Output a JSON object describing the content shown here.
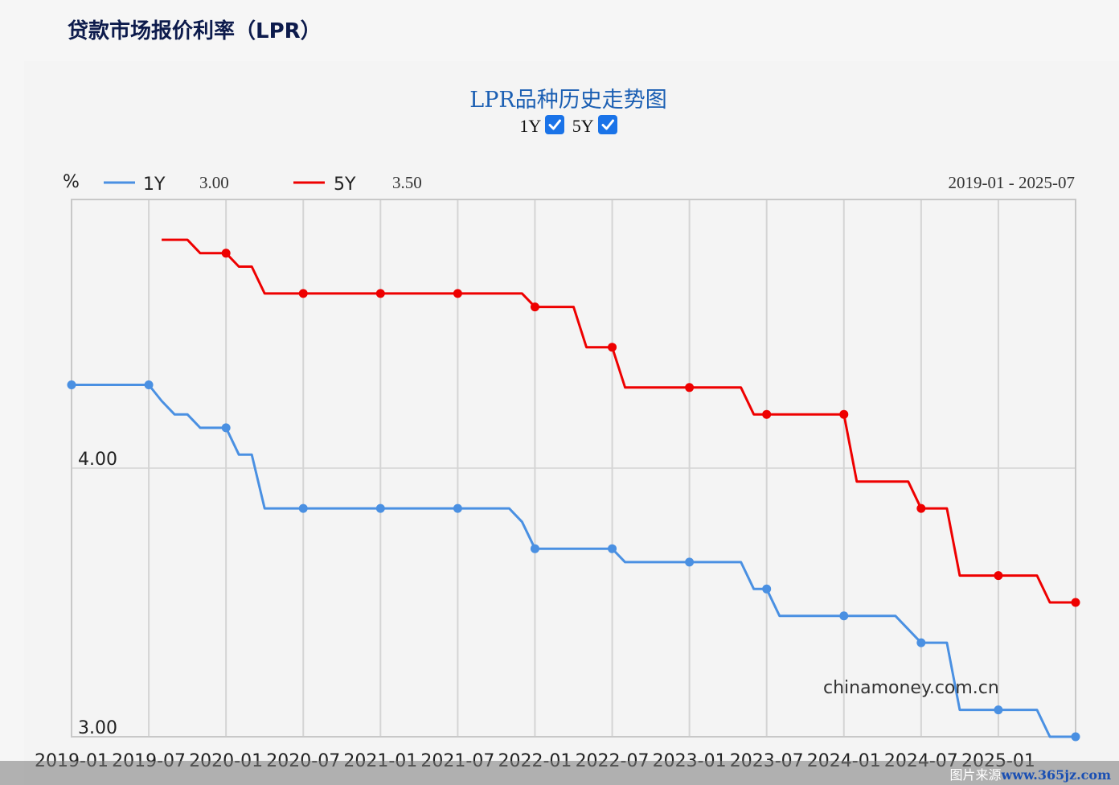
{
  "page_title": "贷款市场报价利率（LPR）",
  "chart_title": "LPR品种历史走势图",
  "toggles": [
    {
      "label": "1Y",
      "checked": true
    },
    {
      "label": "5Y",
      "checked": true
    }
  ],
  "legend": {
    "unit": "%",
    "series": [
      {
        "name": "1Y",
        "value": "3.00",
        "color": "#4a90e2"
      },
      {
        "name": "5Y",
        "value": "3.50",
        "color": "#ee0000"
      }
    ]
  },
  "date_range": "2019-01 - 2025-07",
  "watermark": "chinamoney.com.cn",
  "footer": {
    "prefix": "图片来源",
    "site": "www.365jz.com"
  },
  "chart_data": {
    "type": "line",
    "xlabel": "",
    "ylabel": "%",
    "xlim": [
      "2019-01",
      "2025-07"
    ],
    "ylim": [
      3.0,
      5.0
    ],
    "x_ticks": [
      "2019-01",
      "2019-07",
      "2020-01",
      "2020-07",
      "2021-01",
      "2021-07",
      "2022-01",
      "2022-07",
      "2023-01",
      "2023-07",
      "2024-01",
      "2024-07",
      "2025-01"
    ],
    "y_ticks": [
      "4.00",
      "3.00"
    ],
    "y_tick_values": [
      4.0,
      3.0
    ],
    "grid": true,
    "series": [
      {
        "name": "1Y",
        "color": "#4a90e2",
        "points": [
          [
            "2019-01",
            4.31
          ],
          [
            "2019-07",
            4.31
          ],
          [
            "2019-08",
            4.25
          ],
          [
            "2019-09",
            4.2
          ],
          [
            "2019-10",
            4.2
          ],
          [
            "2019-11",
            4.15
          ],
          [
            "2020-01",
            4.15
          ],
          [
            "2020-02",
            4.05
          ],
          [
            "2020-03",
            4.05
          ],
          [
            "2020-04",
            3.85
          ],
          [
            "2020-07",
            3.85
          ],
          [
            "2021-01",
            3.85
          ],
          [
            "2021-07",
            3.85
          ],
          [
            "2021-11",
            3.85
          ],
          [
            "2021-12",
            3.8
          ],
          [
            "2022-01",
            3.7
          ],
          [
            "2022-07",
            3.7
          ],
          [
            "2022-08",
            3.65
          ],
          [
            "2023-01",
            3.65
          ],
          [
            "2023-05",
            3.65
          ],
          [
            "2023-06",
            3.55
          ],
          [
            "2023-07",
            3.55
          ],
          [
            "2023-08",
            3.45
          ],
          [
            "2024-01",
            3.45
          ],
          [
            "2024-05",
            3.45
          ],
          [
            "2024-07",
            3.35
          ],
          [
            "2024-09",
            3.35
          ],
          [
            "2024-10",
            3.1
          ],
          [
            "2025-01",
            3.1
          ],
          [
            "2025-04",
            3.1
          ],
          [
            "2025-05",
            3.0
          ],
          [
            "2025-07",
            3.0
          ]
        ],
        "markers": [
          [
            "2019-01",
            4.31
          ],
          [
            "2019-07",
            4.31
          ],
          [
            "2020-01",
            4.15
          ],
          [
            "2020-07",
            3.85
          ],
          [
            "2021-01",
            3.85
          ],
          [
            "2021-07",
            3.85
          ],
          [
            "2022-01",
            3.7
          ],
          [
            "2022-07",
            3.7
          ],
          [
            "2023-01",
            3.65
          ],
          [
            "2023-07",
            3.55
          ],
          [
            "2024-01",
            3.45
          ],
          [
            "2024-07",
            3.35
          ],
          [
            "2025-01",
            3.1
          ],
          [
            "2025-07",
            3.0
          ]
        ]
      },
      {
        "name": "5Y",
        "color": "#ee0000",
        "points": [
          [
            "2019-08",
            4.85
          ],
          [
            "2019-10",
            4.85
          ],
          [
            "2019-11",
            4.8
          ],
          [
            "2020-01",
            4.8
          ],
          [
            "2020-02",
            4.75
          ],
          [
            "2020-03",
            4.75
          ],
          [
            "2020-04",
            4.65
          ],
          [
            "2020-07",
            4.65
          ],
          [
            "2021-01",
            4.65
          ],
          [
            "2021-07",
            4.65
          ],
          [
            "2021-12",
            4.65
          ],
          [
            "2022-01",
            4.6
          ],
          [
            "2022-04",
            4.6
          ],
          [
            "2022-05",
            4.45
          ],
          [
            "2022-07",
            4.45
          ],
          [
            "2022-08",
            4.3
          ],
          [
            "2023-01",
            4.3
          ],
          [
            "2023-05",
            4.3
          ],
          [
            "2023-06",
            4.2
          ],
          [
            "2023-07",
            4.2
          ],
          [
            "2024-01",
            4.2
          ],
          [
            "2024-02",
            3.95
          ],
          [
            "2024-06",
            3.95
          ],
          [
            "2024-07",
            3.85
          ],
          [
            "2024-09",
            3.85
          ],
          [
            "2024-10",
            3.6
          ],
          [
            "2025-01",
            3.6
          ],
          [
            "2025-04",
            3.6
          ],
          [
            "2025-05",
            3.5
          ],
          [
            "2025-07",
            3.5
          ]
        ],
        "markers": [
          [
            "2020-01",
            4.8
          ],
          [
            "2020-07",
            4.65
          ],
          [
            "2021-01",
            4.65
          ],
          [
            "2021-07",
            4.65
          ],
          [
            "2022-01",
            4.6
          ],
          [
            "2022-07",
            4.45
          ],
          [
            "2023-01",
            4.3
          ],
          [
            "2023-07",
            4.2
          ],
          [
            "2024-01",
            4.2
          ],
          [
            "2024-07",
            3.85
          ],
          [
            "2025-01",
            3.6
          ],
          [
            "2025-07",
            3.5
          ]
        ]
      }
    ]
  }
}
